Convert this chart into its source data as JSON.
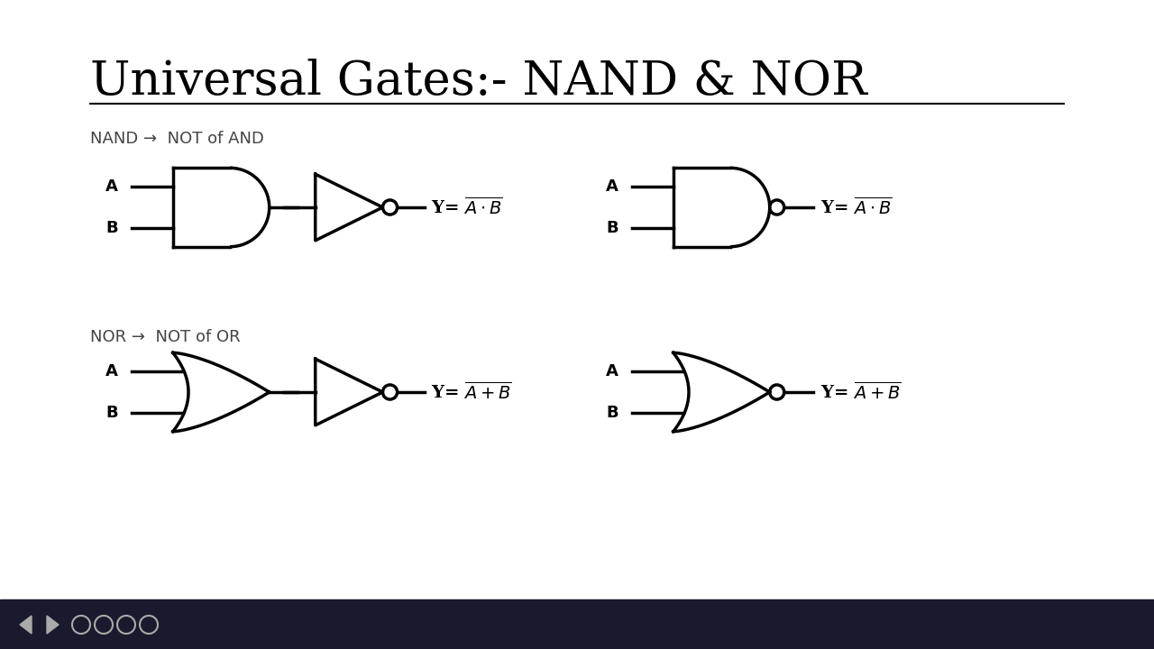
{
  "title": "Universal Gates:- NAND & NOR",
  "bg_color": "#ffffff",
  "text_color": "#000000",
  "line_width": 2.5,
  "nand_label": "NAND →  NOT of AND",
  "nor_label": "NOR →  NOT of OR",
  "footer_color": "#1a1a2e"
}
